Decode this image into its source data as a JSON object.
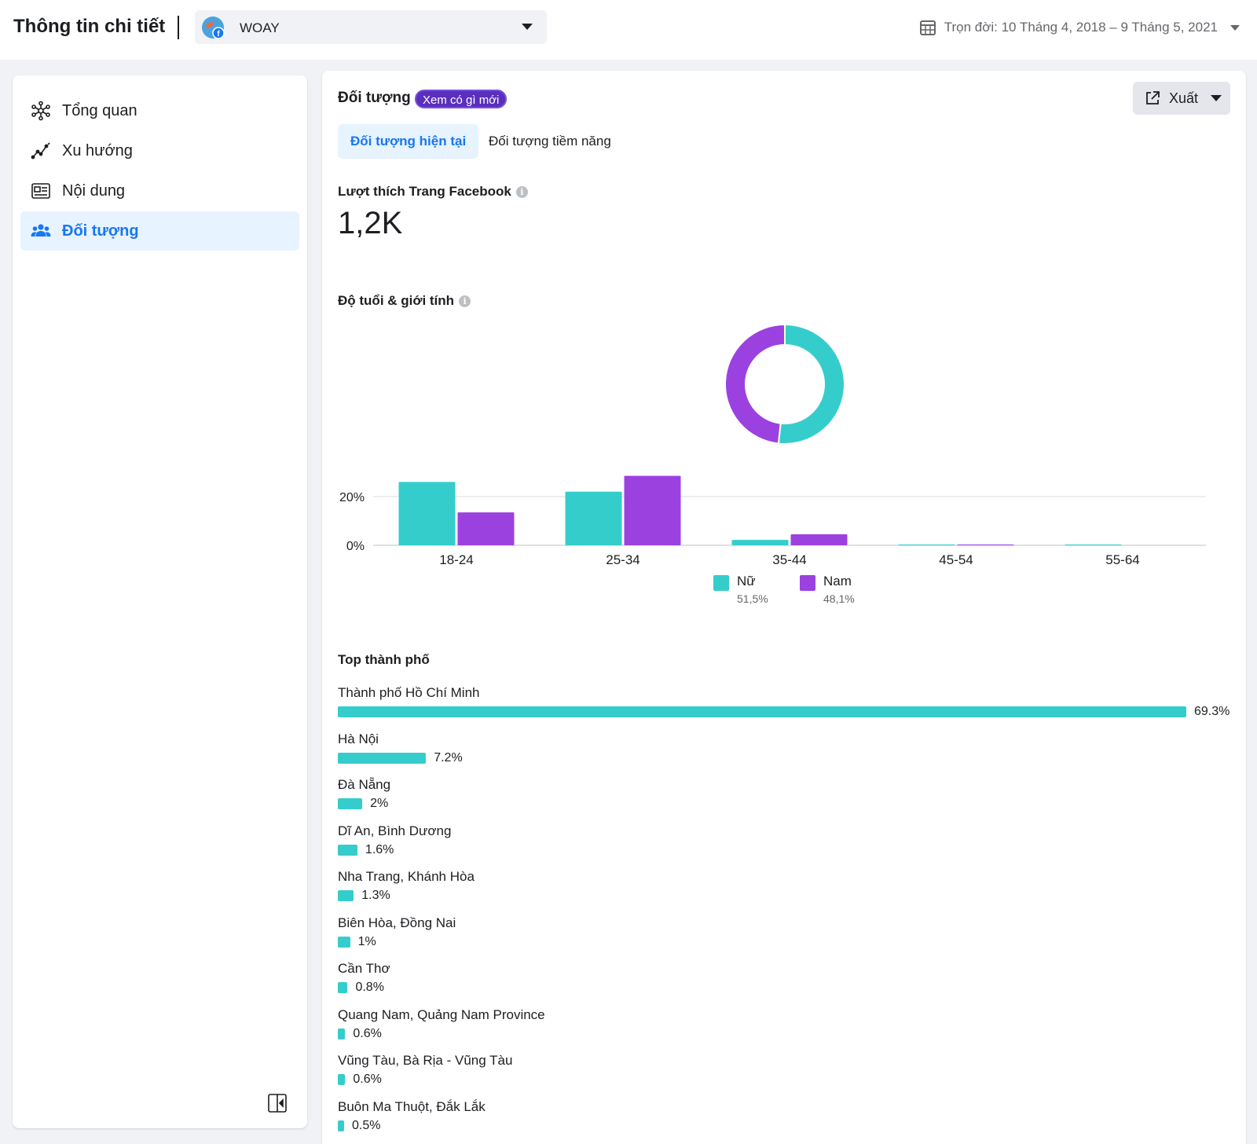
{
  "header": {
    "title": "Thông tin chi tiết",
    "page_name": "WOAY",
    "date_range": "Trọn đời: 10 Tháng 4, 2018 – 9 Tháng 5, 2021"
  },
  "sidebar": {
    "items": [
      {
        "label": "Tổng quan",
        "icon": "network-icon",
        "active": false
      },
      {
        "label": "Xu hướng",
        "icon": "trend-icon",
        "active": false
      },
      {
        "label": "Nội dung",
        "icon": "content-icon",
        "active": false
      },
      {
        "label": "Đối tượng",
        "icon": "people-icon",
        "active": true
      }
    ]
  },
  "main": {
    "section_title": "Đối tượng",
    "badge": "Xem có gì mới",
    "export_label": "Xuất",
    "tabs": [
      {
        "label": "Đối tượng hiện tại",
        "active": true
      },
      {
        "label": "Đối tượng tiềm năng",
        "active": false
      }
    ],
    "likes_label": "Lượt thích Trang Facebook",
    "likes_value": "1,2K",
    "age_gender_title": "Độ tuổi & giới tính",
    "cities_title": "Top thành phố"
  },
  "colors": {
    "female": "#35cdcc",
    "male": "#9b41e0",
    "accent": "#1877f2"
  },
  "chart_data": [
    {
      "type": "pie",
      "categories": [
        "Nữ",
        "Nam"
      ],
      "values": [
        51.5,
        48.1
      ]
    },
    {
      "type": "bar",
      "categories": [
        "18-24",
        "25-34",
        "35-44",
        "45-54",
        "55-64"
      ],
      "series": [
        {
          "name": "Nữ",
          "values": [
            26,
            22,
            2.2,
            0.3,
            0.3
          ]
        },
        {
          "name": "Nam",
          "values": [
            13.5,
            28.5,
            4.5,
            0.3,
            0
          ]
        }
      ],
      "yticks": [
        "20%",
        "0%"
      ],
      "ylim": [
        0,
        30
      ],
      "legend": [
        {
          "name": "Nữ",
          "pct": "51,5%"
        },
        {
          "name": "Nam",
          "pct": "48,1%"
        }
      ]
    },
    {
      "type": "bar",
      "orientation": "horizontal",
      "categories": [
        "Thành phố Hồ Chí Minh",
        "Hà Nội",
        "Đà Nẵng",
        "Dĩ An, Bình Dương",
        "Nha Trang, Khánh Hòa",
        "Biên Hòa, Đồng Nai",
        "Cần Thơ",
        "Quang Nam, Quảng Nam Province",
        "Vũng Tàu, Bà Rịa - Vũng Tàu",
        "Buôn Ma Thuột, Đắk Lắk"
      ],
      "values": [
        69.3,
        7.2,
        2,
        1.6,
        1.3,
        1,
        0.8,
        0.6,
        0.6,
        0.5
      ],
      "labels": [
        "69.3%",
        "7.2%",
        "2%",
        "1.6%",
        "1.3%",
        "1%",
        "0.8%",
        "0.6%",
        "0.6%",
        "0.5%"
      ]
    }
  ]
}
